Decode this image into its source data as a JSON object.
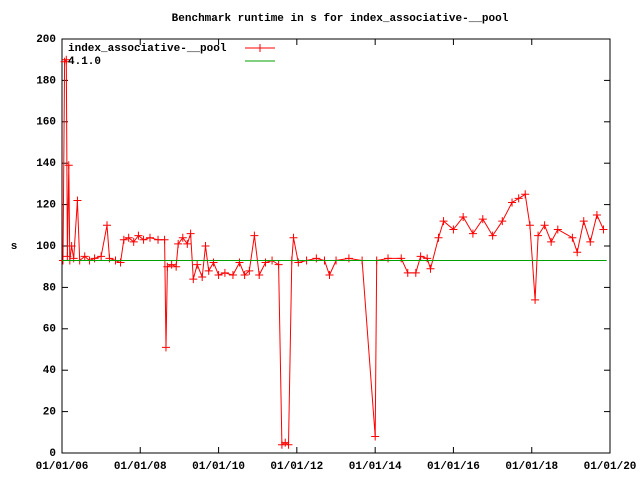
{
  "chart_data": {
    "type": "line",
    "title": "Benchmark runtime in s for index_associative-__pool",
    "y_label": "s",
    "xlim": [
      "2006-01-01",
      "2020-01-01"
    ],
    "xticks": [
      {
        "value": "2006-01-01",
        "label": "01/01/06"
      },
      {
        "value": "2008-01-01",
        "label": "01/01/08"
      },
      {
        "value": "2010-01-01",
        "label": "01/01/10"
      },
      {
        "value": "2012-01-01",
        "label": "01/01/12"
      },
      {
        "value": "2014-01-01",
        "label": "01/01/14"
      },
      {
        "value": "2016-01-01",
        "label": "01/01/16"
      },
      {
        "value": "2018-01-01",
        "label": "01/01/18"
      },
      {
        "value": "2020-01-01",
        "label": "01/01/20"
      }
    ],
    "ylim": [
      0,
      200
    ],
    "yticks": [
      0,
      20,
      40,
      60,
      80,
      100,
      120,
      140,
      160,
      180,
      200
    ],
    "grid": false,
    "legend_position": "top-left",
    "series": [
      {
        "name": "index_associative-__pool",
        "color": "#ff0000",
        "markers": true,
        "x": [
          "2006-01-10",
          "2006-01-25",
          "2006-02-10",
          "2006-02-20",
          "2006-03-05",
          "2006-03-15",
          "2006-04-01",
          "2006-04-20",
          "2006-05-25",
          "2006-06-15",
          "2006-08-01",
          "2006-09-15",
          "2006-11-01",
          "2007-01-01",
          "2007-02-25",
          "2007-03-20",
          "2007-05-15",
          "2007-07-01",
          "2007-08-01",
          "2007-09-15",
          "2007-11-01",
          "2007-12-15",
          "2008-02-01",
          "2008-04-01",
          "2008-06-15",
          "2008-08-15",
          "2008-08-28",
          "2008-09-10",
          "2008-10-20",
          "2008-12-01",
          "2008-12-20",
          "2009-02-01",
          "2009-03-15",
          "2009-04-15",
          "2009-05-10",
          "2009-06-15",
          "2009-08-01",
          "2009-09-01",
          "2009-10-01",
          "2009-11-15",
          "2010-01-01",
          "2010-03-01",
          "2010-05-15",
          "2010-07-15",
          "2010-09-01",
          "2010-10-15",
          "2010-12-01",
          "2011-01-15",
          "2011-03-15",
          "2011-05-15",
          "2011-07-15",
          "2011-08-15",
          "2011-09-15",
          "2011-10-15",
          "2011-11-15",
          "2011-12-01",
          "2012-01-15",
          "2012-04-01",
          "2012-07-01",
          "2012-09-15",
          "2012-11-01",
          "2013-01-01",
          "2013-05-01",
          "2013-09-01",
          "2014-01-01",
          "2014-01-15",
          "2014-05-01",
          "2014-09-01",
          "2014-11-01",
          "2015-01-15",
          "2015-03-01",
          "2015-05-01",
          "2015-06-01",
          "2015-08-15",
          "2015-10-01",
          "2016-01-01",
          "2016-04-01",
          "2016-07-01",
          "2016-10-01",
          "2017-01-01",
          "2017-04-01",
          "2017-07-01",
          "2017-09-01",
          "2017-11-01",
          "2017-12-15",
          "2018-02-01",
          "2018-03-01",
          "2018-05-01",
          "2018-07-01",
          "2018-09-01",
          "2019-01-15",
          "2019-03-01",
          "2019-05-01",
          "2019-07-01",
          "2019-09-01",
          "2019-11-01"
        ],
        "values": [
          93,
          189,
          190,
          95,
          139,
          93,
          100,
          94,
          122,
          93,
          95,
          93,
          94,
          95,
          110,
          94,
          93,
          92,
          103,
          104,
          102,
          105,
          103,
          104,
          103,
          103,
          51,
          90,
          91,
          90,
          101,
          104,
          101,
          106,
          84,
          91,
          85,
          100,
          88,
          92,
          86,
          87,
          86,
          92,
          86,
          88,
          105,
          86,
          92,
          93,
          91,
          4,
          5,
          4,
          93,
          104,
          92,
          93,
          94,
          93,
          86,
          93,
          94,
          93,
          8,
          93,
          94,
          94,
          87,
          87,
          95,
          94,
          89,
          104,
          112,
          108,
          114,
          106,
          113,
          105,
          112,
          121,
          123,
          125,
          110,
          74,
          105,
          110,
          102,
          108,
          104,
          97,
          112,
          102,
          115,
          108
        ]
      },
      {
        "name": "4.1.0",
        "color": "#00a000",
        "markers": false,
        "x": [
          "2006-01-01",
          "2019-12-01"
        ],
        "values": [
          93,
          93
        ]
      }
    ]
  }
}
